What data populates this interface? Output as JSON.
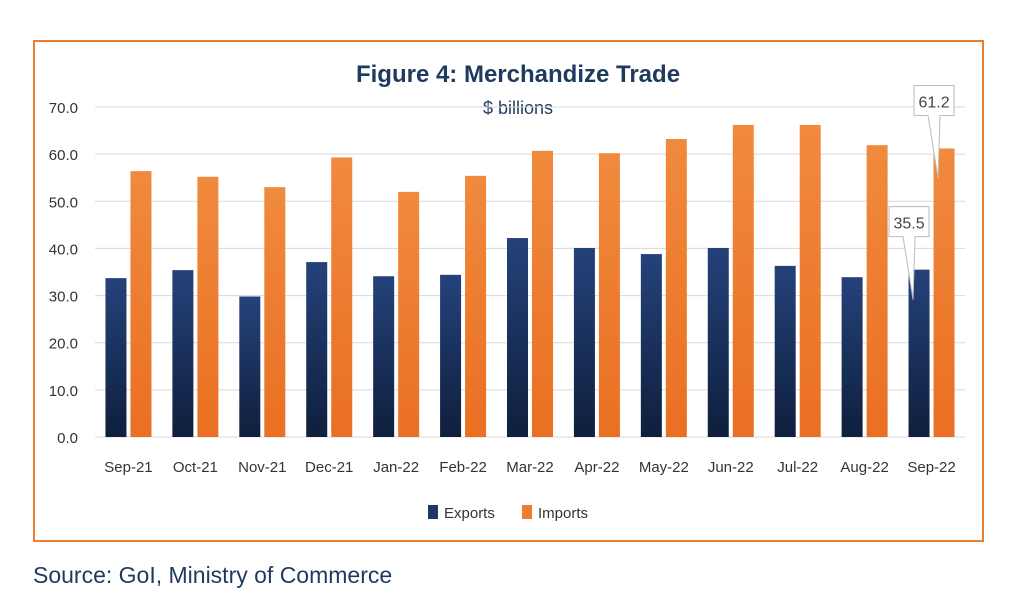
{
  "chart_data": {
    "type": "bar",
    "title": "Figure 4: Merchandize Trade",
    "subtitle": "$ billions",
    "xlabel": "",
    "ylabel": "",
    "ylim": [
      0,
      70
    ],
    "yticks": [
      "0.0",
      "10.0",
      "20.0",
      "30.0",
      "40.0",
      "50.0",
      "60.0",
      "70.0"
    ],
    "grid": true,
    "legend": "bottom",
    "categories": [
      "Sep-21",
      "Oct-21",
      "Nov-21",
      "Dec-21",
      "Jan-22",
      "Feb-22",
      "Mar-22",
      "Apr-22",
      "May-22",
      "Jun-22",
      "Jul-22",
      "Aug-22",
      "Sep-22"
    ],
    "series": [
      {
        "name": "Exports",
        "color": "#1f3864",
        "values": [
          33.7,
          35.4,
          29.8,
          37.1,
          34.1,
          34.4,
          42.2,
          40.1,
          38.8,
          40.1,
          36.3,
          33.9,
          35.5
        ]
      },
      {
        "name": "Imports",
        "color": "#ed7d31",
        "values": [
          56.4,
          55.2,
          53.0,
          59.3,
          52.0,
          55.4,
          60.7,
          60.2,
          63.2,
          66.2,
          66.2,
          61.9,
          61.2
        ]
      }
    ],
    "annotations": [
      {
        "series": "Exports",
        "category": "Sep-22",
        "text": "35.5"
      },
      {
        "series": "Imports",
        "category": "Sep-22",
        "text": "61.2"
      }
    ]
  },
  "source": "Source: GoI, Ministry of Commerce"
}
